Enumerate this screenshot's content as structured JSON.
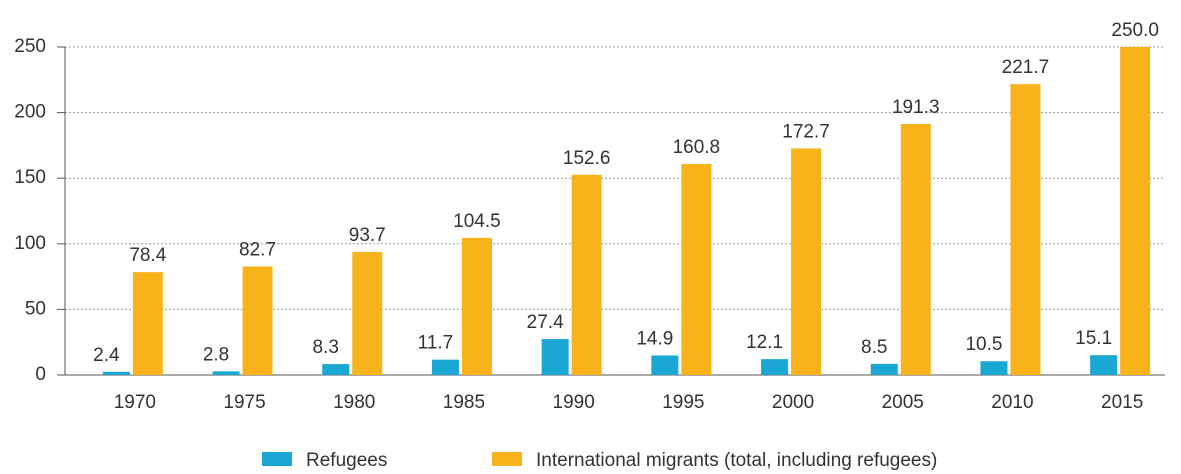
{
  "chart_data": {
    "type": "bar",
    "categories": [
      "1970",
      "1975",
      "1980",
      "1985",
      "1990",
      "1995",
      "2000",
      "2005",
      "2010",
      "2015"
    ],
    "series": [
      {
        "name": "Refugees",
        "color": "#1aa7d4",
        "values": [
          2.4,
          2.8,
          8.3,
          11.7,
          27.4,
          14.9,
          12.1,
          8.5,
          10.5,
          15.1
        ]
      },
      {
        "name": "International migrants (total, including refugees)",
        "color": "#f8b31a",
        "values": [
          78.4,
          82.7,
          93.7,
          104.5,
          152.6,
          160.8,
          172.7,
          191.3,
          221.7,
          {
            "value": 250,
            "label": "250.0"
          }
        ]
      }
    ],
    "ylim": [
      0,
      250
    ],
    "yticks": [
      0,
      50,
      100,
      150,
      200,
      250
    ],
    "grid": true,
    "legend": "bottom"
  }
}
